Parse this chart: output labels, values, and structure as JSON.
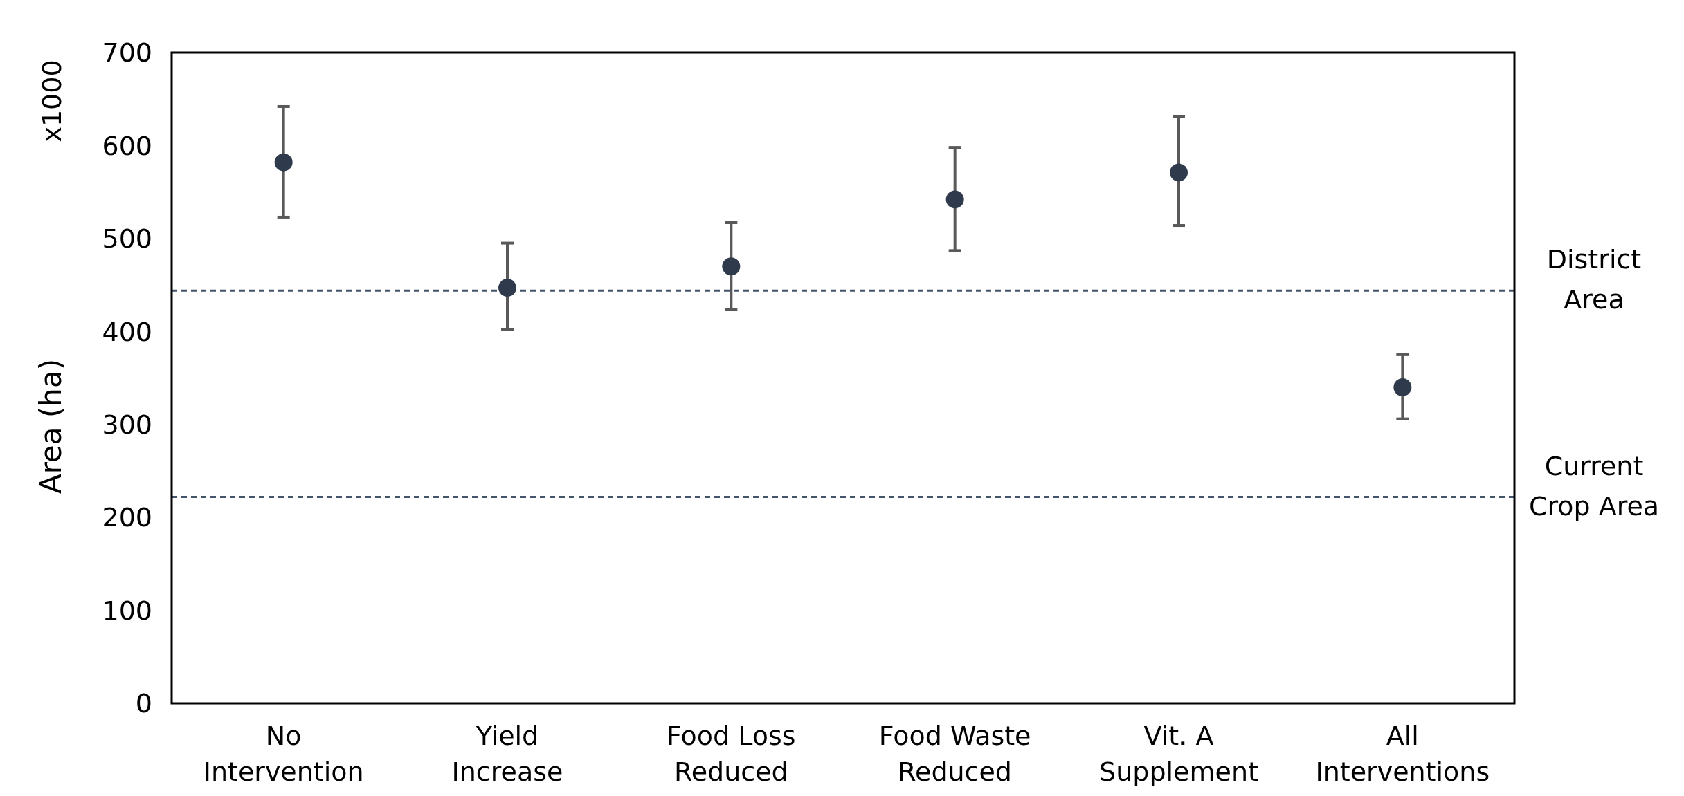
{
  "chart_data": {
    "type": "scatter",
    "ylabel": "Area (ha)",
    "annotations": [
      "x1000"
    ],
    "categories": [
      "No Intervention",
      "Yield Increase",
      "Food Loss Reduced",
      "Food Waste Reduced",
      "Vit. A Supplement",
      "All Interventions"
    ],
    "series": [
      {
        "color": "#2f3b4c",
        "values": [
          582,
          447,
          470,
          542,
          571,
          340
        ],
        "errors": [
          [
            523,
            642
          ],
          [
            402,
            495
          ],
          [
            424,
            517
          ],
          [
            487,
            598
          ],
          [
            514,
            631
          ],
          [
            306,
            375
          ]
        ]
      }
    ],
    "ylim": [
      0,
      700
    ],
    "yticks": [
      0,
      100,
      200,
      300,
      400,
      500,
      600,
      700
    ],
    "grid": false,
    "marker": "circle",
    "ref_lines": [
      {
        "axis": "y",
        "value": 444,
        "label": "District Area",
        "color": "#44546a",
        "line_style": "dashed"
      },
      {
        "axis": "y",
        "value": 222,
        "label": "Current Crop Area",
        "color": "#44546a",
        "line_style": "dashed"
      }
    ]
  }
}
